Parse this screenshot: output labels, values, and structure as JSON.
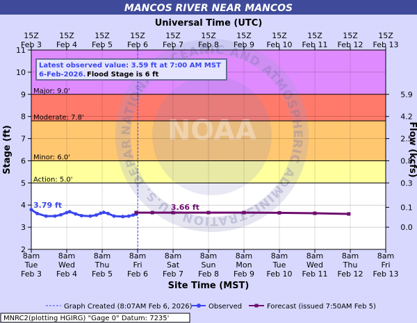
{
  "chart_data": {
    "type": "line",
    "title": "MANCOS RIVER NEAR MANCOS",
    "top_axis_label": "Universal Time (UTC)",
    "top_ticks": [
      [
        "15Z",
        "Feb 3"
      ],
      [
        "15Z",
        "Feb 4"
      ],
      [
        "15Z",
        "Feb 5"
      ],
      [
        "15Z",
        "Feb 6"
      ],
      [
        "15Z",
        "Feb 7"
      ],
      [
        "15Z",
        "Feb 8"
      ],
      [
        "15Z",
        "Feb 9"
      ],
      [
        "15Z",
        "Feb 10"
      ],
      [
        "15Z",
        "Feb 11"
      ],
      [
        "15Z",
        "Feb 12"
      ],
      [
        "15Z",
        "Feb 13"
      ]
    ],
    "xlabel": "Site Time (MST)",
    "bottom_ticks": [
      [
        "8am",
        "Tue",
        "Feb 3"
      ],
      [
        "8am",
        "Wed",
        "Feb 4"
      ],
      [
        "8am",
        "Thu",
        "Feb 5"
      ],
      [
        "8am",
        "Fri",
        "Feb 6"
      ],
      [
        "8am",
        "Sat",
        "Feb 7"
      ],
      [
        "8am",
        "Sun",
        "Feb 8"
      ],
      [
        "8am",
        "Mon",
        "Feb 9"
      ],
      [
        "8am",
        "Tue",
        "Feb 10"
      ],
      [
        "8am",
        "Wed",
        "Feb 11"
      ],
      [
        "8am",
        "Thu",
        "Feb 12"
      ],
      [
        "8am",
        "Fri",
        "Feb 13"
      ]
    ],
    "xlim": [
      "2026-02-03T08:00",
      "2026-02-13T08:00"
    ],
    "ylabel": "Stage (ft)",
    "ylim": [
      2,
      11
    ],
    "y_ticks": [
      2,
      3,
      4,
      5,
      6,
      7,
      8,
      9,
      10,
      11
    ],
    "y2label": "Flow (kcfs)",
    "y2_ticks": [
      {
        "stage": 3.0,
        "label": "0.0"
      },
      {
        "stage": 3.9,
        "label": "0.1"
      },
      {
        "stage": 5.0,
        "label": "0.3"
      },
      {
        "stage": 6.0,
        "label": "0.8"
      },
      {
        "stage": 7.0,
        "label": "2.5"
      },
      {
        "stage": 8.0,
        "label": "4.2"
      },
      {
        "stage": 9.0,
        "label": "5.9"
      }
    ],
    "thresholds": [
      {
        "label": "Action: 5.0'",
        "stage": 5.0,
        "band_to": 6.0,
        "color": "#ffff9e"
      },
      {
        "label": "Minor: 6.0'",
        "stage": 6.0,
        "band_to": 7.8,
        "color": "#ffc770"
      },
      {
        "label": "Moderate: 7.8'",
        "stage": 7.8,
        "band_to": 9.0,
        "color": "#ff7a6a"
      },
      {
        "label": "Major: 9.0'",
        "stage": 9.0,
        "band_to": 11.0,
        "color": "#e08aff"
      }
    ],
    "observed_label": "3.79 ft",
    "forecast_label": "3.66 ft",
    "series": [
      {
        "name": "Observed",
        "color": "#3a46ee",
        "points": [
          [
            "2026-02-03T08:00",
            3.79
          ],
          [
            "2026-02-03T12:00",
            3.62
          ],
          [
            "2026-02-03T18:00",
            3.5
          ],
          [
            "2026-02-04T00:00",
            3.5
          ],
          [
            "2026-02-04T04:00",
            3.56
          ],
          [
            "2026-02-04T08:00",
            3.66
          ],
          [
            "2026-02-04T10:00",
            3.7
          ],
          [
            "2026-02-04T14:00",
            3.6
          ],
          [
            "2026-02-04T18:00",
            3.52
          ],
          [
            "2026-02-05T00:00",
            3.5
          ],
          [
            "2026-02-05T04:00",
            3.55
          ],
          [
            "2026-02-05T07:00",
            3.63
          ],
          [
            "2026-02-05T09:00",
            3.67
          ],
          [
            "2026-02-05T12:00",
            3.62
          ],
          [
            "2026-02-05T16:00",
            3.5
          ],
          [
            "2026-02-05T22:00",
            3.48
          ],
          [
            "2026-02-06T02:00",
            3.5
          ],
          [
            "2026-02-06T05:00",
            3.55
          ],
          [
            "2026-02-06T07:00",
            3.59
          ]
        ]
      },
      {
        "name": "Forecast (issued 7:50AM Feb 5)",
        "color": "#6e0d6e",
        "points": [
          [
            "2026-02-06T07:00",
            3.66
          ],
          [
            "2026-02-06T18:00",
            3.66
          ],
          [
            "2026-02-07T08:00",
            3.66
          ],
          [
            "2026-02-08T08:00",
            3.66
          ],
          [
            "2026-02-09T08:00",
            3.66
          ],
          [
            "2026-02-10T08:00",
            3.65
          ],
          [
            "2026-02-11T08:00",
            3.63
          ],
          [
            "2026-02-12T07:00",
            3.6
          ]
        ]
      }
    ],
    "graph_created_at": "2026-02-06T08:07",
    "info_box": {
      "line1": "Latest observed value: 3.59 ft at 7:00 AM MST",
      "line2_blue": "6-Feb-2026.",
      "line2_black": "Flood Stage is 6 ft"
    },
    "legend": {
      "created": "Graph Created (8:07AM Feb 6, 2026)",
      "observed": "Observed",
      "forecast": "Forecast (issued 7:50AM Feb 5)"
    },
    "footer": "MNRC2(plotting HGIRG) \"Gage 0\" Datum: 7235'",
    "watermark": "NATIONAL OCEANIC AND ATMOSPHERIC ADMINISTRATION · U.S. DEPARTMENT OF COMMERCE · NOAA",
    "colors": {
      "title_bar": "#3f4b9a",
      "background": "#d8d8ff",
      "plot_bg": "#ffffff",
      "grid": "#000000"
    },
    "grid": true,
    "legend_placement": "bottom"
  }
}
